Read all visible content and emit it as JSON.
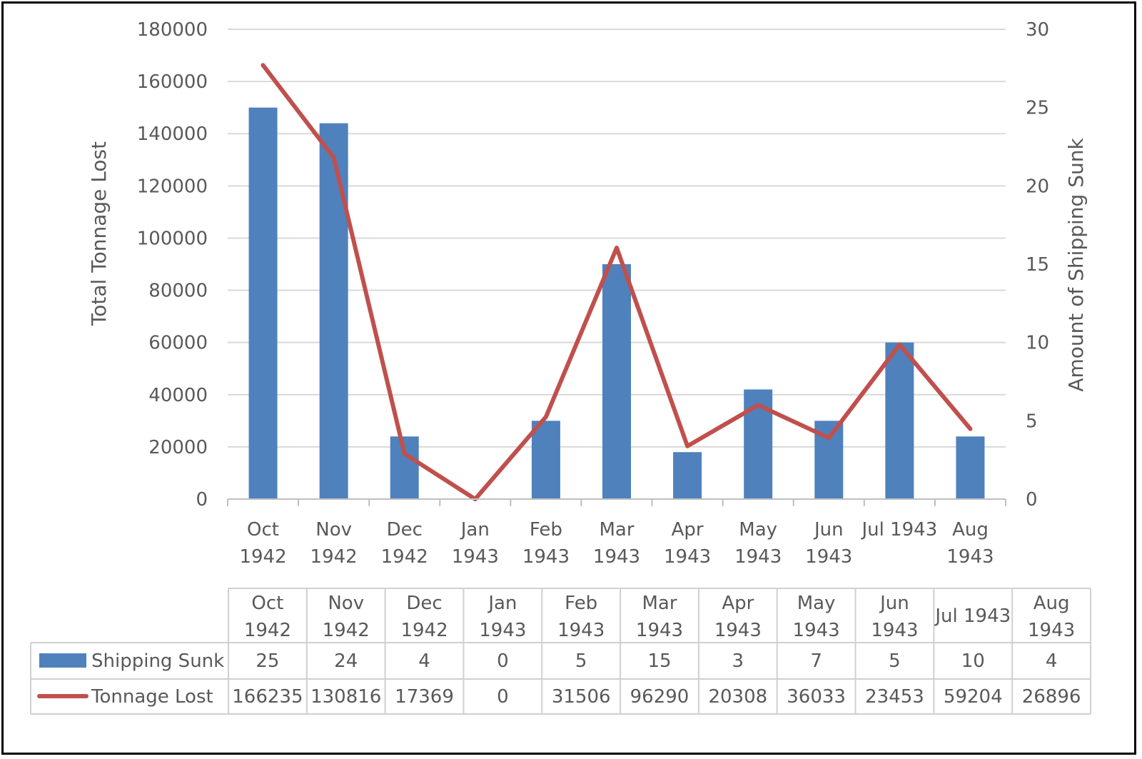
{
  "chart_data": {
    "type": "bar",
    "categories": [
      [
        "Oct",
        "1942"
      ],
      [
        "Nov",
        "1942"
      ],
      [
        "Dec",
        "1942"
      ],
      [
        "Jan",
        "1943"
      ],
      [
        "Feb",
        "1943"
      ],
      [
        "Mar",
        "1943"
      ],
      [
        "Apr",
        "1943"
      ],
      [
        "May",
        "1943"
      ],
      [
        "Jun",
        "1943"
      ],
      [
        "Jul 1943"
      ],
      [
        "Aug",
        "1943"
      ]
    ],
    "series": [
      {
        "name": "Shipping Sunk",
        "type": "bar",
        "axis": "left",
        "color": "#4f81bd",
        "values": [
          25,
          24,
          4,
          0,
          5,
          15,
          3,
          7,
          5,
          10,
          4
        ]
      },
      {
        "name": "Tonnage Lost",
        "type": "line",
        "axis": "right",
        "color": "#c0504d",
        "values": [
          166235,
          130816,
          17369,
          0,
          31506,
          96290,
          20308,
          36033,
          23453,
          59204,
          26896
        ]
      }
    ],
    "ylabel": "Total Tonnage Lost",
    "ylabel_right": "Amount of Shipping Sunk",
    "ylim": [
      0,
      180000
    ],
    "ylim_right": [
      0,
      30
    ],
    "yticks": [
      "0",
      "20000",
      "40000",
      "60000",
      "80000",
      "100000",
      "120000",
      "140000",
      "160000",
      "180000"
    ],
    "yticks_right": [
      "0",
      "5",
      "10",
      "15",
      "20",
      "25",
      "30"
    ],
    "grid": true,
    "legend": "data-table-bottom"
  }
}
